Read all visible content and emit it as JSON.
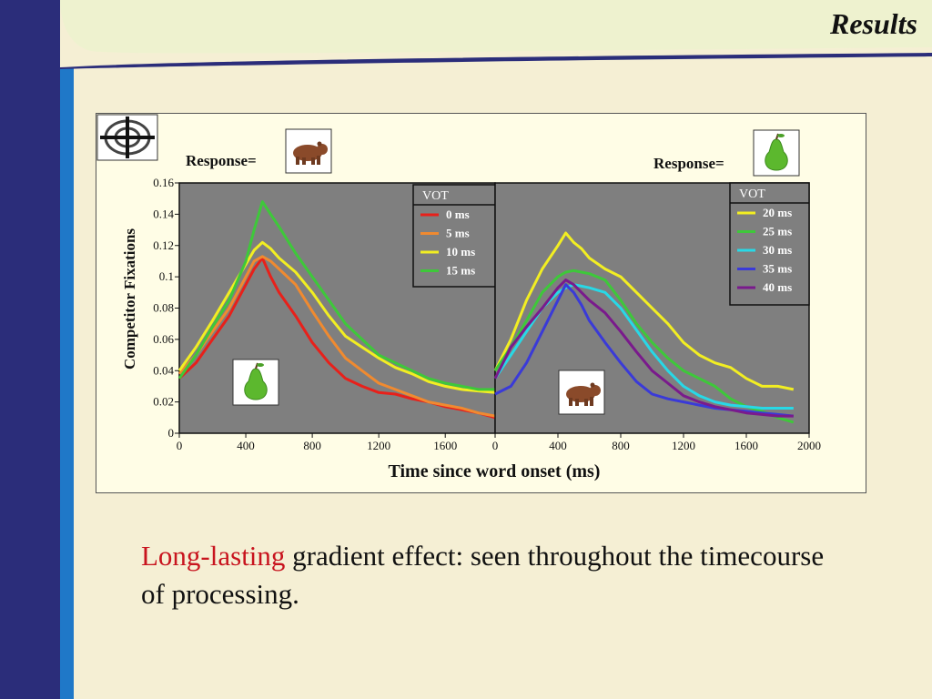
{
  "slide": {
    "title": "Results",
    "caption_highlight": "Long-lasting",
    "caption_rest": " gradient effect: seen throughout the timecourse of processing."
  },
  "colors": {
    "background": "#f5efd4",
    "header_band": "#eef2cf",
    "left_band": "#2b2d7a",
    "left_stripe": "#1f78c8",
    "plot_bg": "#7f7f7f",
    "highlight": "#c8141e"
  },
  "icons": {
    "logo": "crosshair-target-icon",
    "bear": "bear-icon",
    "pear": "pear-icon"
  },
  "chart_data": {
    "type": "line",
    "ylabel": "Competitor Fixations",
    "xlabel": "Time since word onset (ms)",
    "ylim": [
      0,
      0.16
    ],
    "yticks": [
      "0",
      "0.02",
      "0.04",
      "0.06",
      "0.08",
      "0.1",
      "0.12",
      "0.14",
      "0.16"
    ],
    "panels": [
      {
        "response_label": "Response=",
        "response_icon": "bear-icon",
        "inset_icon": "pear-icon",
        "legend_title": "VOT",
        "xlim": [
          0,
          1900
        ],
        "xticks": [
          "0",
          "400",
          "800",
          "1200",
          "1600"
        ],
        "series": [
          {
            "name": "0 ms",
            "color": "#e8201a",
            "x": [
              0,
              100,
              200,
              300,
              400,
              450,
              500,
              550,
              600,
              700,
              800,
              900,
              1000,
              1100,
              1200,
              1300,
              1400,
              1500,
              1600,
              1700,
              1800,
              1900
            ],
            "y": [
              0.035,
              0.045,
              0.06,
              0.075,
              0.095,
              0.105,
              0.112,
              0.1,
              0.09,
              0.075,
              0.058,
              0.045,
              0.035,
              0.03,
              0.026,
              0.025,
              0.022,
              0.02,
              0.017,
              0.015,
              0.013,
              0.01
            ]
          },
          {
            "name": "5 ms",
            "color": "#f08a30",
            "x": [
              0,
              100,
              200,
              300,
              400,
              450,
              500,
              550,
              600,
              700,
              800,
              900,
              1000,
              1100,
              1200,
              1300,
              1400,
              1500,
              1600,
              1700,
              1800,
              1900
            ],
            "y": [
              0.038,
              0.05,
              0.065,
              0.08,
              0.1,
              0.11,
              0.113,
              0.11,
              0.105,
              0.095,
              0.078,
              0.062,
              0.048,
              0.04,
              0.032,
              0.028,
              0.024,
              0.02,
              0.018,
              0.016,
              0.013,
              0.011
            ]
          },
          {
            "name": "10 ms",
            "color": "#f2ee22",
            "x": [
              0,
              100,
              200,
              300,
              400,
              450,
              500,
              550,
              600,
              700,
              800,
              900,
              1000,
              1100,
              1200,
              1300,
              1400,
              1500,
              1600,
              1700,
              1800,
              1900
            ],
            "y": [
              0.04,
              0.055,
              0.072,
              0.09,
              0.108,
              0.117,
              0.122,
              0.118,
              0.112,
              0.103,
              0.09,
              0.075,
              0.062,
              0.055,
              0.048,
              0.042,
              0.038,
              0.033,
              0.03,
              0.028,
              0.027,
              0.026
            ]
          },
          {
            "name": "15 ms",
            "color": "#3ec83a",
            "x": [
              0,
              100,
              200,
              300,
              400,
              450,
              500,
              550,
              600,
              700,
              800,
              900,
              1000,
              1100,
              1200,
              1300,
              1400,
              1500,
              1600,
              1700,
              1800,
              1900
            ],
            "y": [
              0.035,
              0.05,
              0.068,
              0.085,
              0.11,
              0.13,
              0.148,
              0.14,
              0.132,
              0.115,
              0.1,
              0.085,
              0.07,
              0.06,
              0.05,
              0.045,
              0.04,
              0.035,
              0.032,
              0.03,
              0.028,
              0.028
            ]
          }
        ]
      },
      {
        "response_label": "Response=",
        "response_icon": "pear-icon",
        "inset_icon": "bear-icon",
        "legend_title": "VOT",
        "xlim": [
          0,
          2000
        ],
        "xticks": [
          "0",
          "400",
          "800",
          "1200",
          "1600",
          "2000"
        ],
        "series": [
          {
            "name": "20 ms",
            "color": "#f2ee22",
            "x": [
              0,
              100,
              200,
              300,
              400,
              450,
              500,
              550,
              600,
              700,
              800,
              900,
              1000,
              1100,
              1200,
              1300,
              1400,
              1500,
              1600,
              1700,
              1800,
              1900
            ],
            "y": [
              0.04,
              0.06,
              0.085,
              0.105,
              0.12,
              0.128,
              0.122,
              0.118,
              0.112,
              0.105,
              0.1,
              0.09,
              0.08,
              0.07,
              0.058,
              0.05,
              0.045,
              0.042,
              0.035,
              0.03,
              0.03,
              0.028
            ]
          },
          {
            "name": "25 ms",
            "color": "#3ec83a",
            "x": [
              0,
              100,
              200,
              300,
              400,
              450,
              500,
              550,
              600,
              700,
              800,
              900,
              1000,
              1100,
              1200,
              1300,
              1400,
              1500,
              1600,
              1700,
              1800,
              1900
            ],
            "y": [
              0.04,
              0.055,
              0.072,
              0.09,
              0.1,
              0.103,
              0.104,
              0.103,
              0.102,
              0.098,
              0.085,
              0.07,
              0.058,
              0.048,
              0.04,
              0.035,
              0.03,
              0.022,
              0.017,
              0.014,
              0.01,
              0.007
            ]
          },
          {
            "name": "30 ms",
            "color": "#28d8e6",
            "x": [
              0,
              100,
              200,
              300,
              400,
              450,
              500,
              550,
              600,
              700,
              800,
              900,
              1000,
              1100,
              1200,
              1300,
              1400,
              1500,
              1600,
              1700,
              1800,
              1900
            ],
            "y": [
              0.035,
              0.05,
              0.065,
              0.08,
              0.09,
              0.093,
              0.095,
              0.094,
              0.093,
              0.09,
              0.08,
              0.066,
              0.052,
              0.04,
              0.03,
              0.024,
              0.02,
              0.018,
              0.017,
              0.016,
              0.016,
              0.016
            ]
          },
          {
            "name": "35 ms",
            "color": "#3a3ad8",
            "x": [
              0,
              100,
              200,
              300,
              400,
              450,
              500,
              550,
              600,
              700,
              800,
              900,
              1000,
              1100,
              1200,
              1300,
              1400,
              1500,
              1600,
              1700,
              1800,
              1900
            ],
            "y": [
              0.025,
              0.03,
              0.045,
              0.065,
              0.085,
              0.095,
              0.09,
              0.082,
              0.072,
              0.058,
              0.045,
              0.033,
              0.025,
              0.022,
              0.02,
              0.018,
              0.016,
              0.015,
              0.014,
              0.013,
              0.012,
              0.011
            ]
          },
          {
            "name": "40 ms",
            "color": "#7a1a8c",
            "x": [
              0,
              100,
              200,
              300,
              400,
              450,
              500,
              550,
              600,
              700,
              800,
              900,
              1000,
              1100,
              1200,
              1300,
              1400,
              1500,
              1600,
              1700,
              1800,
              1900
            ],
            "y": [
              0.035,
              0.055,
              0.068,
              0.08,
              0.093,
              0.098,
              0.095,
              0.09,
              0.085,
              0.077,
              0.065,
              0.052,
              0.04,
              0.032,
              0.024,
              0.02,
              0.017,
              0.015,
              0.013,
              0.012,
              0.011,
              0.011
            ]
          }
        ]
      }
    ]
  }
}
